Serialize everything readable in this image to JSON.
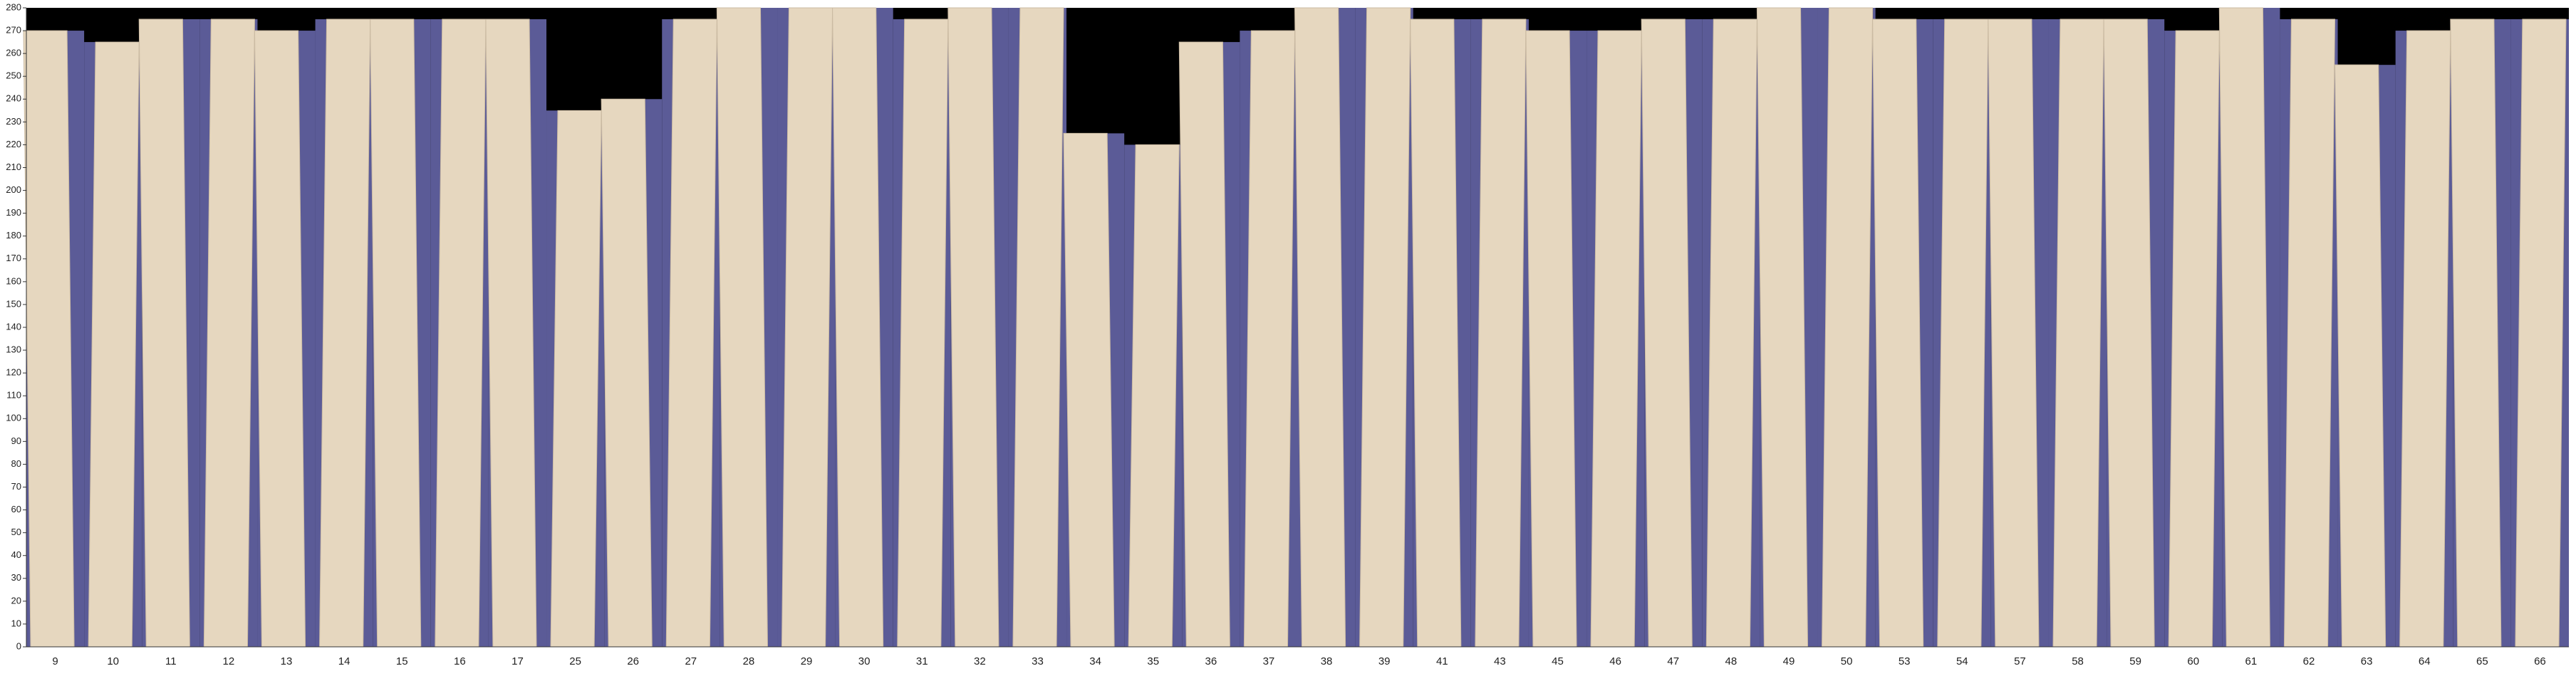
{
  "chart_data": {
    "type": "bar",
    "categories": [
      "9",
      "10",
      "11",
      "12",
      "13",
      "14",
      "15",
      "16",
      "17",
      "25",
      "26",
      "27",
      "28",
      "29",
      "30",
      "31",
      "32",
      "33",
      "34",
      "35",
      "36",
      "37",
      "38",
      "39",
      "41",
      "43",
      "45",
      "46",
      "47",
      "48",
      "49",
      "50",
      "53",
      "54",
      "57",
      "58",
      "59",
      "60",
      "61",
      "62",
      "63",
      "64",
      "65",
      "66"
    ],
    "values": [
      270,
      265,
      275,
      275,
      270,
      275,
      275,
      275,
      275,
      235,
      240,
      275,
      280,
      280,
      280,
      275,
      280,
      280,
      225,
      220,
      265,
      270,
      280,
      280,
      275,
      275,
      270,
      270,
      275,
      275,
      280,
      280,
      275,
      275,
      275,
      275,
      275,
      270,
      280,
      275,
      255,
      270,
      275,
      275
    ],
    "color": "#e6d7bf",
    "ylim": [
      0,
      280
    ],
    "yticks": [
      0,
      10,
      20,
      30,
      40,
      50,
      60,
      70,
      80,
      90,
      100,
      110,
      120,
      130,
      140,
      150,
      160,
      170,
      180,
      190,
      200,
      210,
      220,
      230,
      240,
      250,
      260,
      270,
      280
    ]
  }
}
